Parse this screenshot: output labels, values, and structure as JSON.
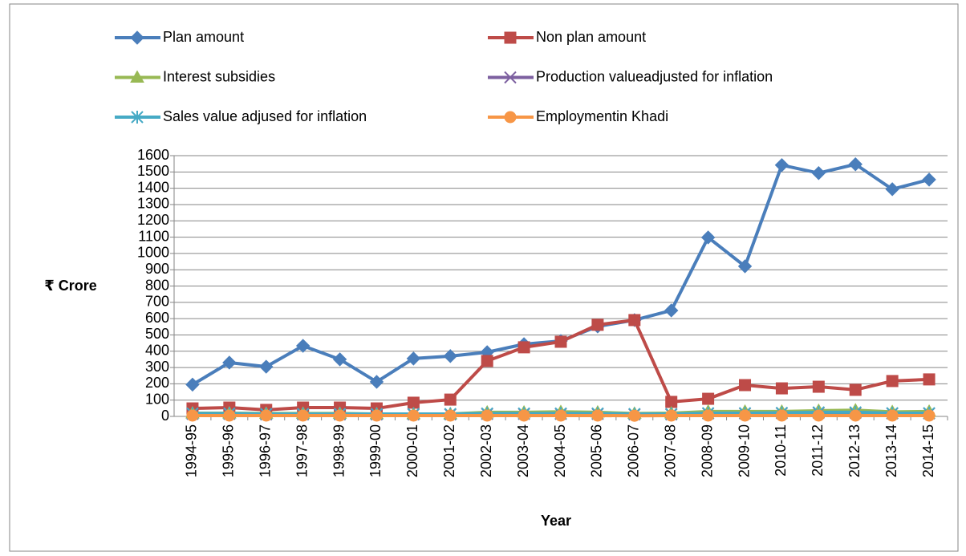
{
  "chart_data": {
    "type": "line",
    "y_label": "₹ Crore",
    "x_label": "Year",
    "categories": [
      "1994-95",
      "1995-96",
      "1996-97",
      "1997-98",
      "1998-99",
      "1999-00",
      "2000-01",
      "2001-02",
      "2002-03",
      "2003-04",
      "2004-05",
      "2005-06",
      "2006-07",
      "2007-08",
      "2008-09",
      "2009-10",
      "2010-11",
      "2011-12",
      "2012-13",
      "2013-14",
      "2014-15"
    ],
    "series": [
      {
        "name": "Plan amount",
        "color": "#4a7ebb",
        "marker": "diamond",
        "values": [
          195,
          330,
          305,
          433,
          350,
          212,
          355,
          370,
          394,
          443,
          463,
          552,
          591,
          650,
          1098,
          921,
          1542,
          1493,
          1547,
          1394,
          1453
        ]
      },
      {
        "name": "Non plan amount",
        "color": "#be4b48",
        "marker": "square",
        "values": [
          49,
          54,
          40,
          54,
          54,
          49,
          84,
          103,
          340,
          424,
          458,
          562,
          591,
          89,
          108,
          192,
          172,
          182,
          163,
          217,
          227
        ]
      },
      {
        "name": "Interest subsidies",
        "color": "#98b954",
        "marker": "triangle",
        "values": [
          20,
          20,
          18,
          18,
          18,
          15,
          15,
          15,
          25,
          25,
          28,
          25,
          18,
          20,
          30,
          30,
          30,
          35,
          38,
          28,
          30
        ]
      },
      {
        "name": "Production valueadjusted for inflation",
        "color": "#7d60a0",
        "marker": "x",
        "values": [
          15,
          15,
          12,
          12,
          12,
          12,
          12,
          12,
          15,
          15,
          15,
          15,
          12,
          12,
          18,
          18,
          20,
          22,
          22,
          18,
          18
        ]
      },
      {
        "name": "Sales value adjused for inflation",
        "color": "#46aac5",
        "marker": "star",
        "values": [
          18,
          18,
          15,
          15,
          15,
          15,
          15,
          15,
          18,
          18,
          18,
          18,
          15,
          15,
          20,
          20,
          22,
          25,
          25,
          20,
          20
        ]
      },
      {
        "name": "Employmentin Khadi",
        "color": "#f79646",
        "marker": "circle",
        "values": [
          5,
          5,
          5,
          5,
          5,
          5,
          5,
          5,
          5,
          5,
          5,
          5,
          4,
          5,
          5,
          5,
          5,
          5,
          5,
          5,
          5
        ]
      }
    ],
    "ylim": [
      0,
      1600
    ],
    "yticks": [
      0,
      100,
      200,
      300,
      400,
      500,
      600,
      700,
      800,
      900,
      1000,
      1100,
      1200,
      1300,
      1400,
      1500,
      1600
    ],
    "grid": true,
    "legend": "top"
  }
}
